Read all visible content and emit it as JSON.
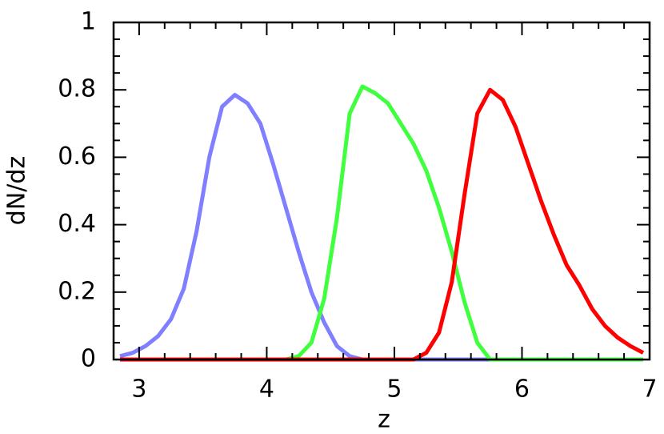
{
  "chart_data": {
    "type": "line",
    "x_label": "z",
    "y_label": "dN/dz",
    "x": [
      2.85,
      2.95,
      3.05,
      3.15,
      3.25,
      3.35,
      3.45,
      3.55,
      3.65,
      3.75,
      3.85,
      3.95,
      4.05,
      4.15,
      4.25,
      4.35,
      4.45,
      4.55,
      4.65,
      4.75,
      4.85,
      4.95,
      5.05,
      5.15,
      5.25,
      5.35,
      5.45,
      5.55,
      5.65,
      5.75,
      5.85,
      5.95,
      6.05,
      6.15,
      6.25,
      6.35,
      6.45,
      6.55,
      6.65,
      6.75,
      6.85,
      6.95
    ],
    "series": [
      {
        "color": "#7f7fff",
        "values": [
          0.01,
          0.02,
          0.04,
          0.07,
          0.12,
          0.21,
          0.38,
          0.6,
          0.75,
          0.785,
          0.76,
          0.7,
          0.58,
          0.45,
          0.32,
          0.2,
          0.11,
          0.04,
          0.01,
          0,
          0,
          0,
          0,
          0,
          0,
          0,
          0,
          0,
          0,
          0,
          0,
          0,
          0,
          0,
          0,
          0,
          0,
          0,
          0,
          0,
          0,
          0
        ]
      },
      {
        "color": "#3fff3f",
        "values": [
          0,
          0,
          0,
          0,
          0,
          0,
          0,
          0,
          0,
          0,
          0,
          0,
          0,
          0,
          0.01,
          0.05,
          0.18,
          0.42,
          0.73,
          0.81,
          0.79,
          0.76,
          0.7,
          0.64,
          0.56,
          0.45,
          0.32,
          0.17,
          0.05,
          0,
          0,
          0,
          0,
          0,
          0,
          0,
          0,
          0,
          0,
          0,
          0,
          0
        ]
      },
      {
        "color": "#ff0000",
        "values": [
          0,
          0,
          0,
          0,
          0,
          0,
          0,
          0,
          0,
          0,
          0,
          0,
          0,
          0,
          0,
          0,
          0,
          0,
          0,
          0,
          0,
          0,
          0,
          0,
          0.02,
          0.08,
          0.23,
          0.49,
          0.73,
          0.8,
          0.77,
          0.69,
          0.58,
          0.47,
          0.37,
          0.28,
          0.22,
          0.15,
          0.1,
          0.065,
          0.04,
          0.02
        ]
      }
    ],
    "xlim": [
      2.8,
      7
    ],
    "ylim": [
      0,
      1
    ],
    "xticks": [
      3,
      4,
      5,
      6,
      7
    ],
    "yticks": [
      0,
      0.2,
      0.4,
      0.6,
      0.8,
      1
    ],
    "minor_xticks": [
      2.8,
      3.2,
      3.4,
      3.6,
      3.8,
      4.2,
      4.4,
      4.6,
      4.8,
      5.2,
      5.4,
      5.6,
      5.8,
      6.2,
      6.4,
      6.6,
      6.8
    ],
    "minor_yticks": [
      0.05,
      0.1,
      0.15,
      0.25,
      0.3,
      0.35,
      0.45,
      0.5,
      0.55,
      0.65,
      0.7,
      0.75,
      0.85,
      0.9,
      0.95
    ]
  }
}
